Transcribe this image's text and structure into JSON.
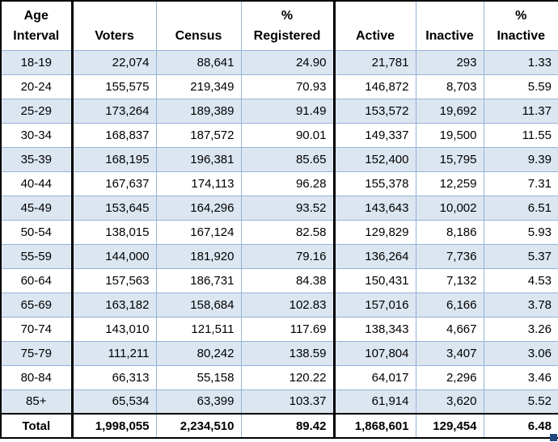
{
  "chart_data": {
    "type": "table",
    "columns": [
      "Age Interval",
      "Voters",
      "Census",
      "% Registered",
      "Active",
      "Inactive",
      "% Inactive"
    ],
    "rows": [
      [
        "18-19",
        "22,074",
        "88,641",
        "24.90",
        "21,781",
        "293",
        "1.33"
      ],
      [
        "20-24",
        "155,575",
        "219,349",
        "70.93",
        "146,872",
        "8,703",
        "5.59"
      ],
      [
        "25-29",
        "173,264",
        "189,389",
        "91.49",
        "153,572",
        "19,692",
        "11.37"
      ],
      [
        "30-34",
        "168,837",
        "187,572",
        "90.01",
        "149,337",
        "19,500",
        "11.55"
      ],
      [
        "35-39",
        "168,195",
        "196,381",
        "85.65",
        "152,400",
        "15,795",
        "9.39"
      ],
      [
        "40-44",
        "167,637",
        "174,113",
        "96.28",
        "155,378",
        "12,259",
        "7.31"
      ],
      [
        "45-49",
        "153,645",
        "164,296",
        "93.52",
        "143,643",
        "10,002",
        "6.51"
      ],
      [
        "50-54",
        "138,015",
        "167,124",
        "82.58",
        "129,829",
        "8,186",
        "5.93"
      ],
      [
        "55-59",
        "144,000",
        "181,920",
        "79.16",
        "136,264",
        "7,736",
        "5.37"
      ],
      [
        "60-64",
        "157,563",
        "186,731",
        "84.38",
        "150,431",
        "7,132",
        "4.53"
      ],
      [
        "65-69",
        "163,182",
        "158,684",
        "102.83",
        "157,016",
        "6,166",
        "3.78"
      ],
      [
        "70-74",
        "143,010",
        "121,511",
        "117.69",
        "138,343",
        "4,667",
        "3.26"
      ],
      [
        "75-79",
        "111,211",
        "80,242",
        "138.59",
        "107,804",
        "3,407",
        "3.06"
      ],
      [
        "80-84",
        "66,313",
        "55,158",
        "120.22",
        "64,017",
        "2,296",
        "3.46"
      ],
      [
        "85+",
        "65,534",
        "63,399",
        "103.37",
        "61,914",
        "3,620",
        "5.52"
      ]
    ],
    "total_row": [
      "Total",
      "1,998,055",
      "2,234,510",
      "89.42",
      "1,868,601",
      "129,454",
      "6.48"
    ]
  },
  "table": {
    "headers": [
      {
        "line1": "Age",
        "line2": "Interval"
      },
      {
        "line1": "",
        "line2": "Voters"
      },
      {
        "line1": "",
        "line2": "Census"
      },
      {
        "line1": "%",
        "line2": "Registered"
      },
      {
        "line1": "",
        "line2": "Active"
      },
      {
        "line1": "",
        "line2": "Inactive"
      },
      {
        "line1": "%",
        "line2": "Inactive"
      }
    ]
  },
  "colors": {
    "row_stripe": "#DCE6F1",
    "gridline": "#95B3D7",
    "thick_border": "#000000",
    "selection_handle": "#1F497D"
  }
}
